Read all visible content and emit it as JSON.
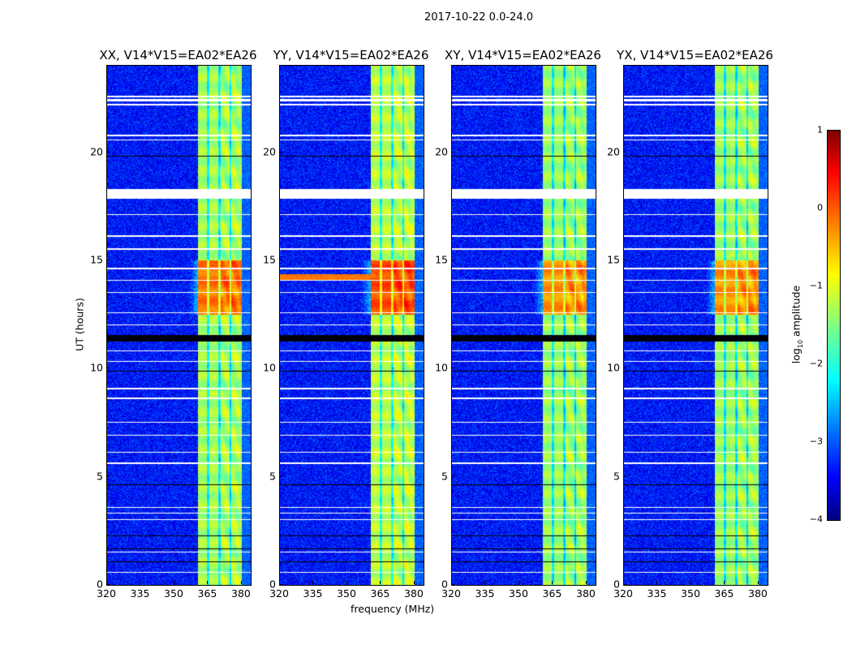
{
  "chart_data": {
    "type": "heatmap",
    "suptitle": "2017-10-22 0.0-24.0",
    "xlabel": "frequency (MHz)",
    "ylabel": "UT (hours)",
    "xlim": [
      320,
      384
    ],
    "ylim": [
      0,
      24
    ],
    "xticks": [
      "320",
      "335",
      "350",
      "365",
      "380"
    ],
    "yticks": [
      "0",
      "5",
      "10",
      "15",
      "20"
    ],
    "panels": [
      {
        "title": "XX, V14*V15=EA02*EA26",
        "band_level": -1.3,
        "rfi_boost": 1.1
      },
      {
        "title": "YY, V14*V15=EA02*EA26",
        "band_level": -1.2,
        "rfi_boost": 1.2
      },
      {
        "title": "XY, V14*V15=EA02*EA26",
        "band_level": -1.35,
        "rfi_boost": 1.0
      },
      {
        "title": "YX, V14*V15=EA02*EA26",
        "band_level": -1.35,
        "rfi_boost": 1.0
      }
    ],
    "bright_band_mhz": [
      360.5,
      380
    ],
    "band_gaps_mhz": [
      365,
      370,
      375
    ],
    "background_level": -3.3,
    "strong_interval_hours": [
      12.5,
      15
    ],
    "flagged_blank_hours": [
      [
        22.15,
        22.25
      ],
      [
        22.35,
        22.45
      ],
      [
        22.55,
        22.6
      ],
      [
        20.55,
        20.6
      ],
      [
        20.75,
        20.8
      ],
      [
        17.85,
        18.3
      ],
      [
        17.1,
        17.15
      ],
      [
        16.1,
        16.15
      ],
      [
        15.5,
        15.55
      ],
      [
        14.6,
        14.65
      ],
      [
        14.05,
        14.1
      ],
      [
        13.5,
        13.55
      ],
      [
        12.55,
        12.6
      ],
      [
        12.0,
        12.05
      ],
      [
        10.8,
        10.85
      ],
      [
        10.3,
        10.35
      ],
      [
        9.05,
        9.1
      ],
      [
        8.6,
        8.65
      ],
      [
        7.5,
        7.55
      ],
      [
        6.9,
        6.95
      ],
      [
        6.1,
        6.15
      ],
      [
        5.6,
        5.65
      ],
      [
        3.55,
        3.6
      ],
      [
        3.3,
        3.35
      ],
      [
        3.0,
        3.05
      ],
      [
        1.5,
        1.55
      ],
      [
        0.55,
        0.6
      ]
    ],
    "flagged_zero_hours": [
      [
        19.8,
        19.85
      ],
      [
        11.25,
        11.55
      ],
      [
        9.85,
        9.9
      ],
      [
        4.6,
        4.65
      ],
      [
        2.25,
        2.3
      ],
      [
        1.65,
        1.7
      ],
      [
        1.05,
        1.1
      ]
    ],
    "colorbar": {
      "label": "log10 amplitude",
      "label_main": "log",
      "label_sub": "10",
      "label_rest": " amplitude",
      "range": [
        -4,
        1
      ],
      "ticks": [
        "1",
        "0",
        "−1",
        "−2",
        "−3",
        "−4"
      ],
      "colormap": "jet"
    }
  }
}
